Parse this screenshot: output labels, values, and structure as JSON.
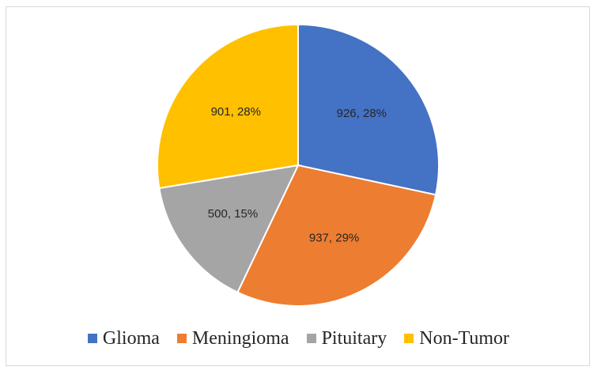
{
  "chart_data": {
    "type": "pie",
    "title": "",
    "slices": [
      {
        "name": "Glioma",
        "value": 926,
        "percent": "28%",
        "label": "926, 28%",
        "color": "#4472C4"
      },
      {
        "name": "Meningioma",
        "value": 937,
        "percent": "29%",
        "label": "937, 29%",
        "color": "#ED7D31"
      },
      {
        "name": "Pituitary",
        "value": 500,
        "percent": "15%",
        "label": "500, 15%",
        "color": "#A5A5A5"
      },
      {
        "name": "Non-Tumor",
        "value": 901,
        "percent": "28%",
        "label": "901, 28%",
        "color": "#FFC000"
      }
    ],
    "start_angle": "12 o'clock",
    "direction": "clockwise",
    "legend": "bottom"
  }
}
